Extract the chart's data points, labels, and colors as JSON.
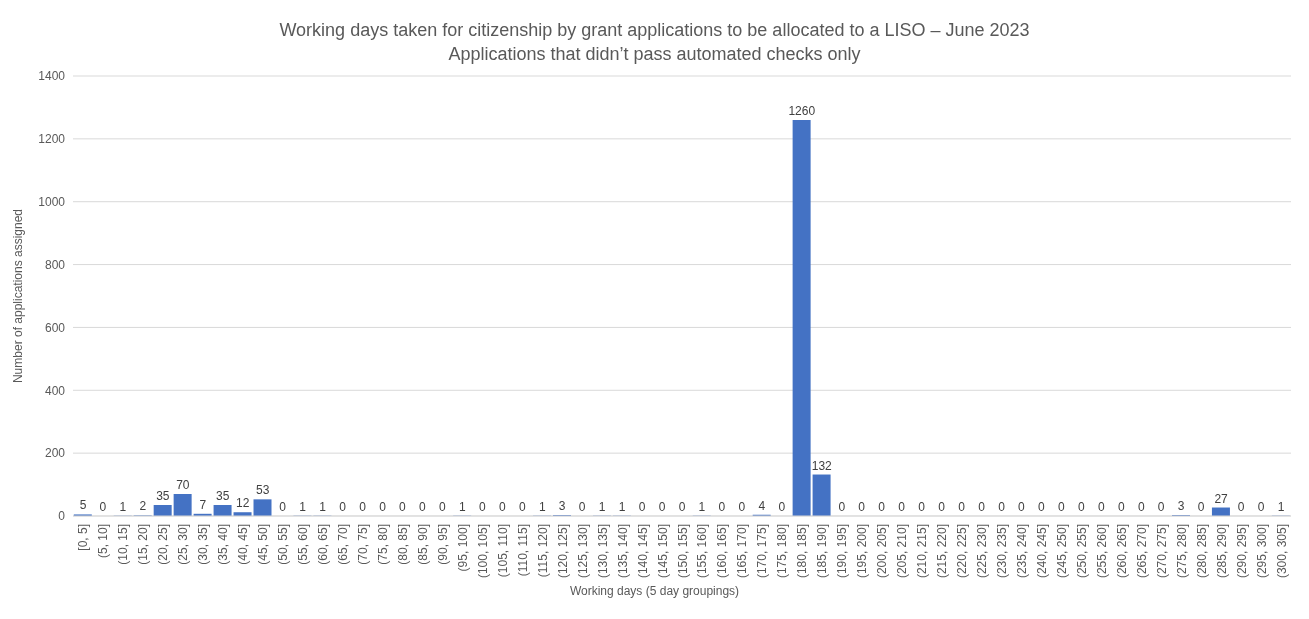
{
  "chart_data": {
    "type": "bar",
    "title": "Working days taken for citizenship by grant applications to be allocated to a LISO – June 2023",
    "subtitle": "Applications that didn’t pass automated checks only",
    "xlabel": "Working days (5 day groupings)",
    "ylabel": "Number of applications assigned",
    "categories": [
      "[0, 5]",
      "(5, 10]",
      "(10, 15]",
      "(15, 20]",
      "(20, 25]",
      "(25, 30]",
      "(30, 35]",
      "(35, 40]",
      "(40, 45]",
      "(45, 50]",
      "(50, 55]",
      "(55, 60]",
      "(60, 65]",
      "(65, 70]",
      "(70, 75]",
      "(75, 80]",
      "(80, 85]",
      "(85, 90]",
      "(90, 95]",
      "(95, 100]",
      "(100, 105]",
      "(105, 110]",
      "(110, 115]",
      "(115, 120]",
      "(120, 125]",
      "(125, 130]",
      "(130, 135]",
      "(135, 140]",
      "(140, 145]",
      "(145, 150]",
      "(150, 155]",
      "(155, 160]",
      "(160, 165]",
      "(165, 170]",
      "(170, 175]",
      "(175, 180]",
      "(180, 185]",
      "(185, 190]",
      "(190, 195]",
      "(195, 200]",
      "(200, 205]",
      "(205, 210]",
      "(210, 215]",
      "(215, 220]",
      "(220, 225]",
      "(225, 230]",
      "(230, 235]",
      "(235, 240]",
      "(240, 245]",
      "(245, 250]",
      "(250, 255]",
      "(255, 260]",
      "(260, 265]",
      "(265, 270]",
      "(270, 275]",
      "(275, 280]",
      "(280, 285]",
      "(285, 290]",
      "(290, 295]",
      "(295, 300]",
      "(300, 305]"
    ],
    "values": [
      5,
      0,
      1,
      2,
      35,
      70,
      7,
      35,
      12,
      53,
      0,
      1,
      1,
      0,
      0,
      0,
      0,
      0,
      0,
      1,
      0,
      0,
      0,
      1,
      3,
      0,
      1,
      1,
      0,
      0,
      0,
      1,
      0,
      0,
      4,
      0,
      1260,
      132,
      0,
      0,
      0,
      0,
      0,
      0,
      0,
      0,
      0,
      0,
      0,
      0,
      0,
      0,
      0,
      0,
      0,
      3,
      0,
      27,
      0,
      0,
      1
    ],
    "color": "#4472c4",
    "ylim": [
      0,
      1400
    ],
    "yticks": [
      0,
      200,
      400,
      600,
      800,
      1000,
      1200,
      1400
    ],
    "grid": "y",
    "data_labels": true
  }
}
